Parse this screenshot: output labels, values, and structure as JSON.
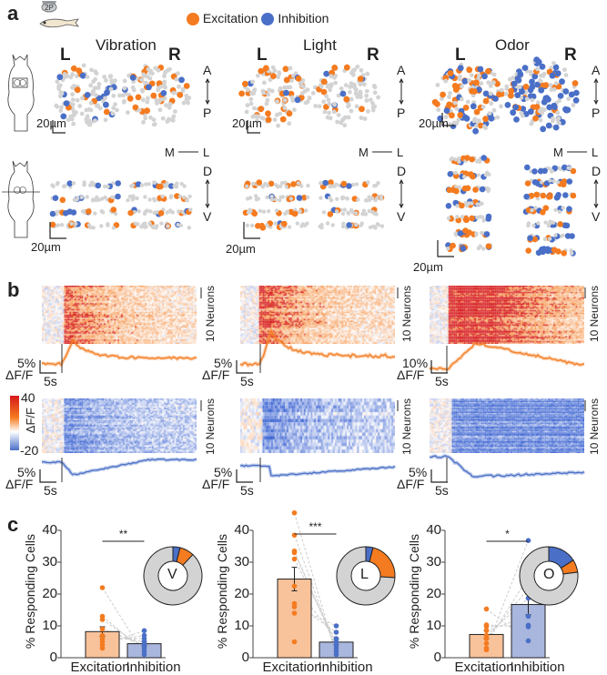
{
  "colors": {
    "excitation": "#f47b20",
    "inhibition": "#4a6fc7",
    "neutral": "#d3d3d3",
    "bar_excitation": "#f8c29a",
    "bar_inhibition": "#a9b6dd",
    "heat_high": "#d7191c",
    "heat_mid": "#ffffff",
    "heat_low": "#2c5fd4"
  },
  "panel_a": {
    "letter": "a",
    "setup_label": "2P",
    "legend": [
      {
        "label": "Excitation",
        "color": "#f47b20"
      },
      {
        "label": "Inhibition",
        "color": "#4a6fc7"
      }
    ],
    "columns": [
      {
        "title": "Vibration",
        "left": "L",
        "right": "R",
        "scale": "20µm"
      },
      {
        "title": "Light",
        "left": "L",
        "right": "R",
        "scale": "20µm"
      },
      {
        "title": "Odor",
        "left": "L",
        "right": "R",
        "scale": "20µm"
      }
    ],
    "axis_top": {
      "a": "A",
      "p": "P"
    },
    "axis_ml": {
      "m": "M",
      "l": "L"
    },
    "axis_dv": {
      "d": "D",
      "v": "V"
    },
    "bottom_scale": "20µm"
  },
  "panel_b": {
    "letter": "b",
    "neurons_label": "10 Neurons",
    "colorbar": {
      "max": "40",
      "min": "-20",
      "label": "ΔF/F"
    },
    "time_scale": "5s",
    "dff_label": "ΔF/F",
    "traces": [
      {
        "stimulus": "Vibration",
        "exc_scale": "5%",
        "inh_scale": "5%"
      },
      {
        "stimulus": "Light",
        "exc_scale": "5%",
        "inh_scale": "5%"
      },
      {
        "stimulus": "Odor",
        "exc_scale": "10%",
        "inh_scale": "5%"
      }
    ]
  },
  "chart_data": [
    {
      "type": "bar",
      "title": "Vibration",
      "ylabel": "% Responding Cells",
      "xlabel": "",
      "categories": [
        "Excitation",
        "Inhibition"
      ],
      "values": [
        8.2,
        4.4
      ],
      "errors": [
        1.5,
        0.7
      ],
      "ylim": [
        0,
        40
      ],
      "yticks": [
        0,
        10,
        20,
        30,
        40
      ],
      "significance": "**",
      "points": {
        "Excitation": [
          22,
          13,
          12,
          9,
          7,
          6,
          5,
          4,
          3
        ],
        "Inhibition": [
          8.5,
          7,
          6,
          5,
          4,
          3,
          2,
          1
        ]
      },
      "pie_label": "V",
      "pie": {
        "inhibition": 4,
        "excitation": 8,
        "none": 88
      }
    },
    {
      "type": "bar",
      "title": "Light",
      "ylabel": "% Responding Cells",
      "xlabel": "",
      "categories": [
        "Excitation",
        "Inhibition"
      ],
      "values": [
        24.7,
        4.9
      ],
      "errors": [
        3.7,
        0.9
      ],
      "ylim": [
        0,
        40
      ],
      "yticks": [
        0,
        10,
        20,
        30,
        40
      ],
      "significance": "***",
      "points": {
        "Excitation": [
          45.5,
          38.5,
          33.5,
          33,
          31,
          22.5,
          17,
          16,
          14,
          5
        ],
        "Inhibition": [
          10,
          8,
          6,
          5,
          4,
          3,
          2,
          1
        ]
      },
      "pie_label": "L",
      "pie": {
        "inhibition": 4,
        "excitation": 22,
        "none": 74
      }
    },
    {
      "type": "bar",
      "title": "Odor",
      "ylabel": "% Responding Cells",
      "xlabel": "",
      "categories": [
        "Excitation",
        "Inhibition"
      ],
      "values": [
        7.3,
        16.7
      ],
      "errors": [
        1.3,
        3.2
      ],
      "ylim": [
        0,
        40
      ],
      "yticks": [
        0,
        10,
        20,
        30,
        40
      ],
      "significance": "*",
      "points": {
        "Excitation": [
          15.3,
          10.3,
          9.8,
          8.5,
          7,
          6,
          4.5,
          3,
          2.5
        ],
        "Inhibition": [
          36.8,
          25.3,
          21.7,
          18.7,
          13,
          10.2,
          9.7,
          5.3
        ]
      },
      "pie_label": "O",
      "pie": {
        "inhibition": 16,
        "excitation": 7,
        "none": 77
      }
    }
  ]
}
